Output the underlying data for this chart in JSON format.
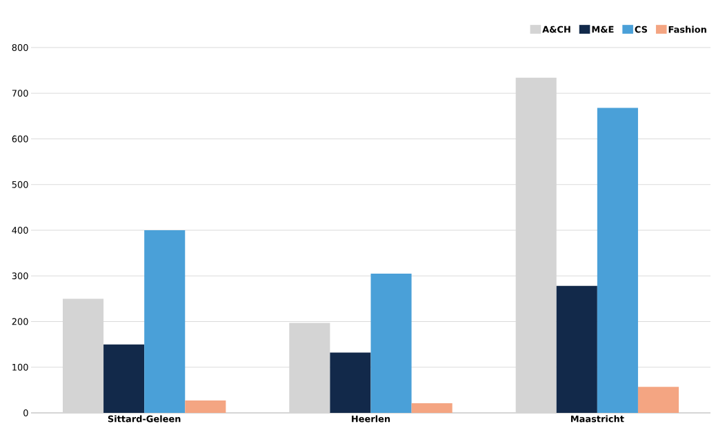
{
  "chart_data": {
    "type": "bar",
    "categories": [
      "Sittard-Geleen",
      "Heerlen",
      "Maastricht"
    ],
    "series": [
      {
        "name": "A&CH",
        "color": "#d4d4d4",
        "values": [
          250,
          197,
          734
        ]
      },
      {
        "name": "M&E",
        "color": "#12294a",
        "values": [
          150,
          132,
          278
        ]
      },
      {
        "name": "CS",
        "color": "#4aa0d8",
        "values": [
          400,
          305,
          668
        ]
      },
      {
        "name": "Fashion",
        "color": "#f4a582",
        "values": [
          27,
          21,
          57
        ]
      }
    ],
    "ylim": [
      0,
      800
    ],
    "yticks": [
      0,
      100,
      200,
      300,
      400,
      500,
      600,
      700,
      800
    ],
    "grid": "y",
    "legend": "top right"
  }
}
